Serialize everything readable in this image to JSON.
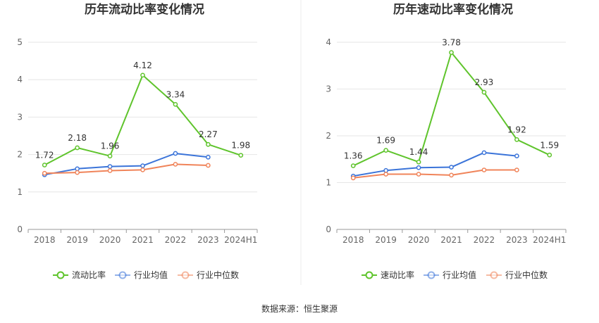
{
  "source_label": "数据来源：恒生聚源",
  "colors": {
    "primary": "#5fc42c",
    "industry_avg": "#3b74d9",
    "industry_median": "#f0845a",
    "grid": "#e6e6e6",
    "axis": "#999999",
    "divider": "#eeeeee"
  },
  "chart_data": [
    {
      "type": "line",
      "title": "历年流动比率变化情况",
      "categories": [
        "2018",
        "2019",
        "2020",
        "2021",
        "2022",
        "2023",
        "2024H1"
      ],
      "ylim": [
        0,
        5
      ],
      "yticks": [
        0,
        1,
        2,
        3,
        4,
        5
      ],
      "grid": true,
      "legend_position": "bottom",
      "series": [
        {
          "name": "流动比率",
          "role": "primary",
          "values": [
            1.72,
            2.18,
            1.96,
            4.12,
            3.34,
            2.27,
            1.98
          ],
          "labels": [
            "1.72",
            "2.18",
            "1.96",
            "4.12",
            "3.34",
            "2.27",
            "1.98"
          ]
        },
        {
          "name": "行业均值",
          "role": "industry_avg",
          "values": [
            1.46,
            1.62,
            1.68,
            1.7,
            2.03,
            1.93,
            null
          ]
        },
        {
          "name": "行业中位数",
          "role": "industry_median",
          "values": [
            1.5,
            1.52,
            1.57,
            1.59,
            1.74,
            1.71,
            null
          ]
        }
      ]
    },
    {
      "type": "line",
      "title": "历年速动比率变化情况",
      "categories": [
        "2018",
        "2019",
        "2020",
        "2021",
        "2022",
        "2023",
        "2024H1"
      ],
      "ylim": [
        0,
        4
      ],
      "yticks": [
        0,
        1,
        2,
        3,
        4
      ],
      "grid": true,
      "legend_position": "bottom",
      "series": [
        {
          "name": "速动比率",
          "role": "primary",
          "values": [
            1.36,
            1.69,
            1.44,
            3.78,
            2.93,
            1.92,
            1.59
          ],
          "labels": [
            "1.36",
            "1.69",
            "1.44",
            "3.78",
            "2.93",
            "1.92",
            "1.59"
          ]
        },
        {
          "name": "行业均值",
          "role": "industry_avg",
          "values": [
            1.14,
            1.26,
            1.32,
            1.33,
            1.64,
            1.57,
            null
          ]
        },
        {
          "name": "行业中位数",
          "role": "industry_median",
          "values": [
            1.1,
            1.18,
            1.18,
            1.16,
            1.27,
            1.27,
            null
          ]
        }
      ]
    }
  ]
}
